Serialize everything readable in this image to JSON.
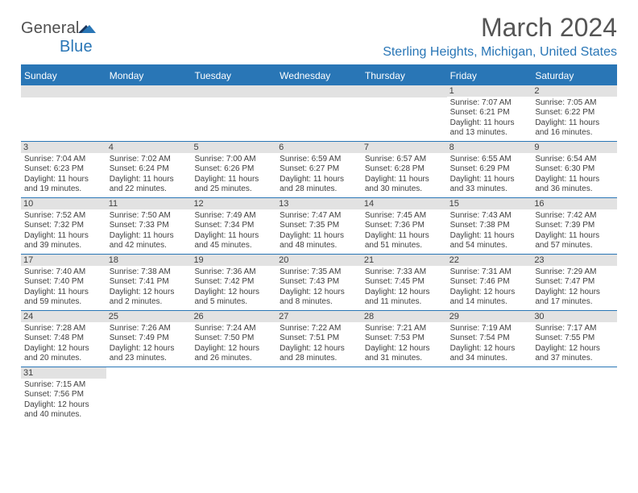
{
  "brand": {
    "name1": "General",
    "name2": "Blue",
    "flag_colors": [
      "#1b365d",
      "#2976b6"
    ],
    "text_color1": "#505050",
    "text_color2": "#2976b6"
  },
  "title": "March 2024",
  "location": "Sterling Heights, Michigan, United States",
  "colors": {
    "accent": "#2976b6",
    "header_bg": "#2976b6",
    "header_text": "#ffffff",
    "date_bg": "#e2e2e2",
    "text": "#404040",
    "background": "#ffffff"
  },
  "days": [
    "Sunday",
    "Monday",
    "Tuesday",
    "Wednesday",
    "Thursday",
    "Friday",
    "Saturday"
  ],
  "weeks": [
    [
      null,
      null,
      null,
      null,
      null,
      {
        "n": "1",
        "sunrise": "7:07 AM",
        "sunset": "6:21 PM",
        "daylight": "11 hours and 13 minutes."
      },
      {
        "n": "2",
        "sunrise": "7:05 AM",
        "sunset": "6:22 PM",
        "daylight": "11 hours and 16 minutes."
      }
    ],
    [
      {
        "n": "3",
        "sunrise": "7:04 AM",
        "sunset": "6:23 PM",
        "daylight": "11 hours and 19 minutes."
      },
      {
        "n": "4",
        "sunrise": "7:02 AM",
        "sunset": "6:24 PM",
        "daylight": "11 hours and 22 minutes."
      },
      {
        "n": "5",
        "sunrise": "7:00 AM",
        "sunset": "6:26 PM",
        "daylight": "11 hours and 25 minutes."
      },
      {
        "n": "6",
        "sunrise": "6:59 AM",
        "sunset": "6:27 PM",
        "daylight": "11 hours and 28 minutes."
      },
      {
        "n": "7",
        "sunrise": "6:57 AM",
        "sunset": "6:28 PM",
        "daylight": "11 hours and 30 minutes."
      },
      {
        "n": "8",
        "sunrise": "6:55 AM",
        "sunset": "6:29 PM",
        "daylight": "11 hours and 33 minutes."
      },
      {
        "n": "9",
        "sunrise": "6:54 AM",
        "sunset": "6:30 PM",
        "daylight": "11 hours and 36 minutes."
      }
    ],
    [
      {
        "n": "10",
        "sunrise": "7:52 AM",
        "sunset": "7:32 PM",
        "daylight": "11 hours and 39 minutes."
      },
      {
        "n": "11",
        "sunrise": "7:50 AM",
        "sunset": "7:33 PM",
        "daylight": "11 hours and 42 minutes."
      },
      {
        "n": "12",
        "sunrise": "7:49 AM",
        "sunset": "7:34 PM",
        "daylight": "11 hours and 45 minutes."
      },
      {
        "n": "13",
        "sunrise": "7:47 AM",
        "sunset": "7:35 PM",
        "daylight": "11 hours and 48 minutes."
      },
      {
        "n": "14",
        "sunrise": "7:45 AM",
        "sunset": "7:36 PM",
        "daylight": "11 hours and 51 minutes."
      },
      {
        "n": "15",
        "sunrise": "7:43 AM",
        "sunset": "7:38 PM",
        "daylight": "11 hours and 54 minutes."
      },
      {
        "n": "16",
        "sunrise": "7:42 AM",
        "sunset": "7:39 PM",
        "daylight": "11 hours and 57 minutes."
      }
    ],
    [
      {
        "n": "17",
        "sunrise": "7:40 AM",
        "sunset": "7:40 PM",
        "daylight": "11 hours and 59 minutes."
      },
      {
        "n": "18",
        "sunrise": "7:38 AM",
        "sunset": "7:41 PM",
        "daylight": "12 hours and 2 minutes."
      },
      {
        "n": "19",
        "sunrise": "7:36 AM",
        "sunset": "7:42 PM",
        "daylight": "12 hours and 5 minutes."
      },
      {
        "n": "20",
        "sunrise": "7:35 AM",
        "sunset": "7:43 PM",
        "daylight": "12 hours and 8 minutes."
      },
      {
        "n": "21",
        "sunrise": "7:33 AM",
        "sunset": "7:45 PM",
        "daylight": "12 hours and 11 minutes."
      },
      {
        "n": "22",
        "sunrise": "7:31 AM",
        "sunset": "7:46 PM",
        "daylight": "12 hours and 14 minutes."
      },
      {
        "n": "23",
        "sunrise": "7:29 AM",
        "sunset": "7:47 PM",
        "daylight": "12 hours and 17 minutes."
      }
    ],
    [
      {
        "n": "24",
        "sunrise": "7:28 AM",
        "sunset": "7:48 PM",
        "daylight": "12 hours and 20 minutes."
      },
      {
        "n": "25",
        "sunrise": "7:26 AM",
        "sunset": "7:49 PM",
        "daylight": "12 hours and 23 minutes."
      },
      {
        "n": "26",
        "sunrise": "7:24 AM",
        "sunset": "7:50 PM",
        "daylight": "12 hours and 26 minutes."
      },
      {
        "n": "27",
        "sunrise": "7:22 AM",
        "sunset": "7:51 PM",
        "daylight": "12 hours and 28 minutes."
      },
      {
        "n": "28",
        "sunrise": "7:21 AM",
        "sunset": "7:53 PM",
        "daylight": "12 hours and 31 minutes."
      },
      {
        "n": "29",
        "sunrise": "7:19 AM",
        "sunset": "7:54 PM",
        "daylight": "12 hours and 34 minutes."
      },
      {
        "n": "30",
        "sunrise": "7:17 AM",
        "sunset": "7:55 PM",
        "daylight": "12 hours and 37 minutes."
      }
    ],
    [
      {
        "n": "31",
        "sunrise": "7:15 AM",
        "sunset": "7:56 PM",
        "daylight": "12 hours and 40 minutes."
      },
      null,
      null,
      null,
      null,
      null,
      null
    ]
  ],
  "labels": {
    "sunrise": "Sunrise:",
    "sunset": "Sunset:",
    "daylight": "Daylight:"
  },
  "fonts": {
    "title_pt": 32,
    "location_pt": 16,
    "dayhead_pt": 12,
    "date_pt": 11,
    "info_pt": 10
  }
}
